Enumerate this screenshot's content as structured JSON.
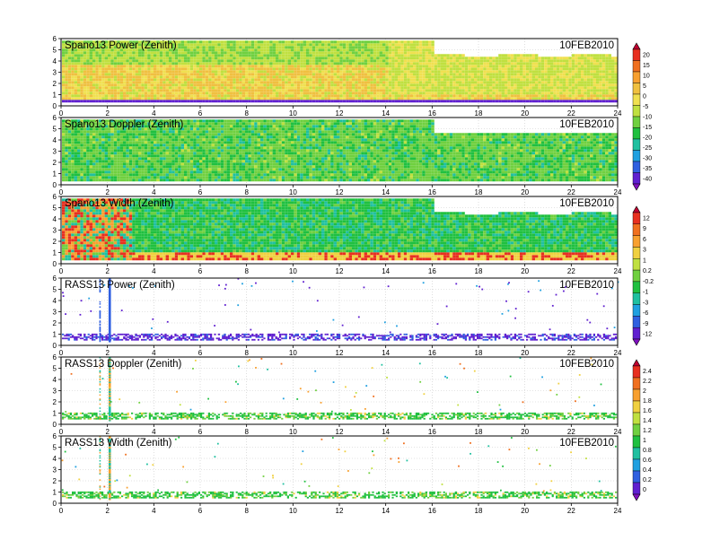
{
  "figure": {
    "date": "10FEB2010"
  },
  "chart_data": [
    {
      "type": "heatmap",
      "title": "Spano13 Power (Zenith)",
      "date": "10FEB2010",
      "xlim": [
        0,
        24
      ],
      "ylim": [
        0,
        6
      ],
      "xticks": [
        0,
        2,
        4,
        6,
        8,
        10,
        12,
        14,
        16,
        18,
        20,
        22,
        24
      ],
      "yticks": [
        0,
        1,
        2,
        3,
        4,
        5,
        6
      ],
      "colorbar": "power"
    },
    {
      "type": "heatmap",
      "title": "Spano13 Doppler (Zenith)",
      "date": "10FEB2010",
      "xlim": [
        0,
        24
      ],
      "ylim": [
        0,
        6
      ],
      "xticks": [
        0,
        2,
        4,
        6,
        8,
        10,
        12,
        14,
        16,
        18,
        20,
        22,
        24
      ],
      "yticks": [
        0,
        1,
        2,
        3,
        4,
        5,
        6
      ],
      "colorbar": "power"
    },
    {
      "type": "heatmap",
      "title": "Spano13 Width (Zenith)",
      "date": "10FEB2010",
      "xlim": [
        0,
        24
      ],
      "ylim": [
        0,
        6
      ],
      "xticks": [
        0,
        2,
        4,
        6,
        8,
        10,
        12,
        14,
        16,
        18,
        20,
        22,
        24
      ],
      "yticks": [
        0,
        1,
        2,
        3,
        4,
        5,
        6
      ],
      "colorbar": "doppler"
    },
    {
      "type": "heatmap",
      "title": "RASS13 Power (Zenith)",
      "date": "10FEB2010",
      "xlim": [
        0,
        24
      ],
      "ylim": [
        0,
        6
      ],
      "xticks": [
        0,
        2,
        4,
        6,
        8,
        10,
        12,
        14,
        16,
        18,
        20,
        22,
        24
      ],
      "yticks": [
        0,
        1,
        2,
        3,
        4,
        5,
        6
      ],
      "colorbar": "doppler"
    },
    {
      "type": "heatmap",
      "title": "RASS13 Doppler (Zenith)",
      "date": "10FEB2010",
      "xlim": [
        0,
        24
      ],
      "ylim": [
        0,
        6
      ],
      "xticks": [
        0,
        2,
        4,
        6,
        8,
        10,
        12,
        14,
        16,
        18,
        20,
        22,
        24
      ],
      "yticks": [
        0,
        1,
        2,
        3,
        4,
        5,
        6
      ],
      "colorbar": "width"
    },
    {
      "type": "heatmap",
      "title": "RASS13 Width (Zenith)",
      "date": "10FEB2010",
      "xlim": [
        0,
        24
      ],
      "ylim": [
        0,
        6
      ],
      "xticks": [
        0,
        2,
        4,
        6,
        8,
        10,
        12,
        14,
        16,
        18,
        20,
        22,
        24
      ],
      "yticks": [
        0,
        1,
        2,
        3,
        4,
        5,
        6
      ],
      "colorbar": "width"
    }
  ],
  "colorbars": [
    {
      "id": "power",
      "labels": [
        "20",
        "15",
        "10",
        "5",
        "0",
        "-5",
        "-10",
        "-15",
        "-20",
        "-25",
        "-30",
        "-35",
        "-40"
      ],
      "colors": [
        "#c00030",
        "#e83020",
        "#f07020",
        "#f8a030",
        "#f0c040",
        "#f0e050",
        "#c0e040",
        "#70d040",
        "#20c040",
        "#20c0a0",
        "#20a0e0",
        "#3060e0",
        "#6020d0",
        "#8010c0"
      ]
    },
    {
      "id": "doppler",
      "labels": [
        "12",
        "9",
        "6",
        "3",
        "1",
        "0.2",
        "-0.2",
        "-1",
        "-3",
        "-6",
        "-9",
        "-12"
      ],
      "colors": [
        "#c00030",
        "#e83020",
        "#f07020",
        "#f8a030",
        "#f0d040",
        "#c0e040",
        "#70d040",
        "#20c040",
        "#20c0a0",
        "#20a0e0",
        "#3060e0",
        "#6020d0",
        "#8010c0"
      ]
    },
    {
      "id": "width",
      "labels": [
        "2.4",
        "2.2",
        "2",
        "1.8",
        "1.6",
        "1.4",
        "1.2",
        "1",
        "0.8",
        "0.6",
        "0.4",
        "0.2",
        "0"
      ],
      "colors": [
        "#c00030",
        "#e83020",
        "#f07020",
        "#f8a030",
        "#f0d040",
        "#c0e040",
        "#70d040",
        "#20c040",
        "#20c0a0",
        "#20a0e0",
        "#3060e0",
        "#6020d0",
        "#8010c0"
      ]
    }
  ]
}
